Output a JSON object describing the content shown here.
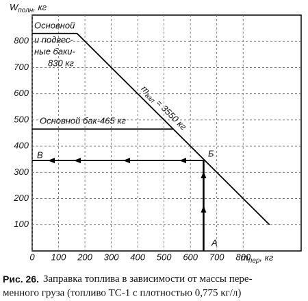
{
  "chart_data": {
    "type": "line",
    "ylabel": "W",
    "ylabel_sub": "полн",
    "ylabel_unit": ", кг",
    "xlabel": "m",
    "xlabel_sub": "пер",
    "xlabel_unit": ", кг",
    "xlim": [
      0,
      1020
    ],
    "ylim": [
      0,
      900
    ],
    "xticks": [
      0,
      100,
      200,
      300,
      400,
      500,
      600,
      700,
      800
    ],
    "yticks": [
      100,
      200,
      300,
      400,
      500,
      600,
      700,
      800
    ],
    "grid": true,
    "series": [
      {
        "color": "#000000",
        "x": [
          0,
          170,
          900
        ],
        "values": [
          830,
          830,
          100
        ]
      },
      {
        "color": "#000000",
        "x": [
          0,
          535
        ],
        "values": [
          465,
          465
        ]
      },
      {
        "color": "#000000",
        "x": [
          650,
          650
        ],
        "values": [
          0,
          345
        ]
      },
      {
        "color": "#000000",
        "x": [
          650,
          0
        ],
        "values": [
          345,
          345
        ]
      }
    ],
    "annotations": [
      "Основной",
      "и подвес-",
      "ные баки-",
      "830 кг",
      "Основной бак-465 кг",
      "m",
      "взл",
      " = 3550 кг",
      "A",
      "Б",
      "В"
    ],
    "caption_label": "Рис. 26.",
    "caption_lines": [
      "Заправка топлива в зависимости от массы пере-",
      "менного груза (топливо ТС-1 с плотностью 0,775 кг/л)"
    ]
  }
}
